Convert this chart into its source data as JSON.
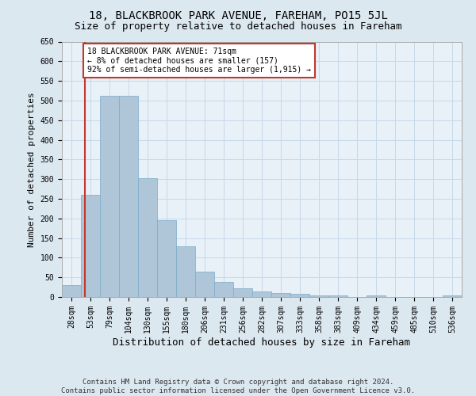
{
  "title1": "18, BLACKBROOK PARK AVENUE, FAREHAM, PO15 5JL",
  "title2": "Size of property relative to detached houses in Fareham",
  "xlabel": "Distribution of detached houses by size in Fareham",
  "ylabel": "Number of detached properties",
  "footer1": "Contains HM Land Registry data © Crown copyright and database right 2024.",
  "footer2": "Contains public sector information licensed under the Open Government Licence v3.0.",
  "categories": [
    "28sqm",
    "53sqm",
    "79sqm",
    "104sqm",
    "130sqm",
    "155sqm",
    "180sqm",
    "206sqm",
    "231sqm",
    "256sqm",
    "282sqm",
    "307sqm",
    "333sqm",
    "358sqm",
    "383sqm",
    "409sqm",
    "434sqm",
    "459sqm",
    "485sqm",
    "510sqm",
    "536sqm"
  ],
  "values": [
    30,
    260,
    512,
    512,
    302,
    196,
    130,
    64,
    38,
    22,
    15,
    10,
    8,
    5,
    5,
    1,
    5,
    1,
    1,
    1,
    5
  ],
  "bar_color": "#aec6d8",
  "bar_edge_color": "#7baac8",
  "highlight_color": "#c0392b",
  "annotation_text": "18 BLACKBROOK PARK AVENUE: 71sqm\n← 8% of detached houses are smaller (157)\n92% of semi-detached houses are larger (1,915) →",
  "annotation_box_color": "#c0392b",
  "annotation_bg_color": "#ffffff",
  "ylim": [
    0,
    650
  ],
  "yticks": [
    0,
    50,
    100,
    150,
    200,
    250,
    300,
    350,
    400,
    450,
    500,
    550,
    600,
    650
  ],
  "grid_color": "#c8d8e8",
  "bg_color": "#dce8f0",
  "plot_bg_color": "#e8f0f8",
  "title1_fontsize": 10,
  "title2_fontsize": 9,
  "xlabel_fontsize": 9,
  "ylabel_fontsize": 8,
  "tick_fontsize": 7,
  "annot_fontsize": 7,
  "footer_fontsize": 6.5
}
